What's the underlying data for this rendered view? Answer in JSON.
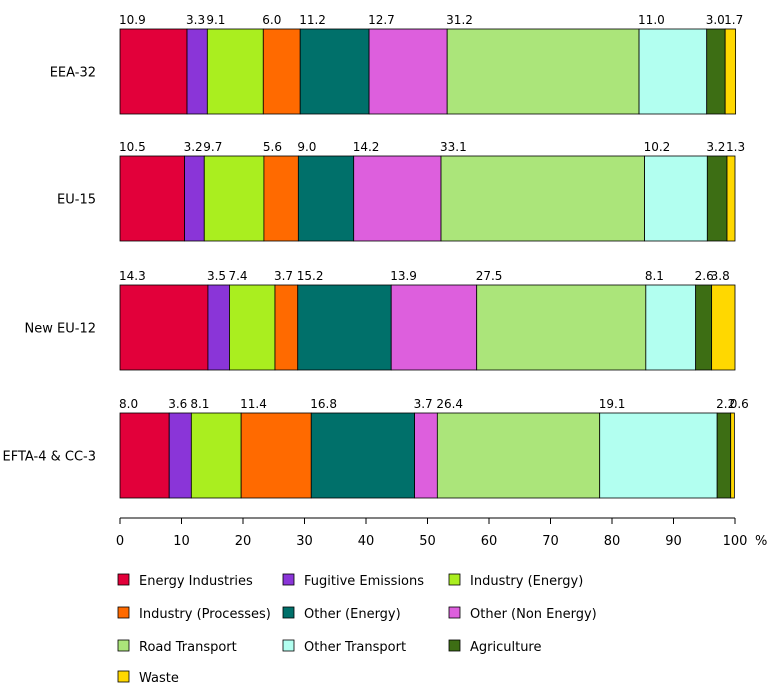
{
  "chart_data": {
    "type": "bar",
    "orientation": "horizontal",
    "stacked": true,
    "title": "",
    "xlabel": "",
    "ylabel": "",
    "x_unit": "%",
    "xlim": [
      0,
      100
    ],
    "x_ticks": [
      0,
      10,
      20,
      30,
      40,
      50,
      60,
      70,
      80,
      90,
      100
    ],
    "grid": false,
    "legend_position": "bottom",
    "categories": [
      "EEA-32",
      "EU-15",
      "New EU-12",
      "EFTA-4 & CC-3"
    ],
    "series": [
      {
        "name": "Energy Industries",
        "color": "#e2003a",
        "values": [
          10.9,
          10.5,
          14.3,
          8.0
        ]
      },
      {
        "name": "Fugitive Emissions",
        "color": "#8a35d8",
        "values": [
          3.3,
          3.2,
          3.5,
          3.6
        ]
      },
      {
        "name": "Industry (Energy)",
        "color": "#aaee1f",
        "values": [
          9.1,
          9.7,
          7.4,
          8.1
        ]
      },
      {
        "name": "Industry (Processes)",
        "color": "#ff6a00",
        "values": [
          6.0,
          5.6,
          3.7,
          11.4
        ]
      },
      {
        "name": "Other (Energy)",
        "color": "#00706a",
        "values": [
          11.2,
          9.0,
          15.2,
          16.8
        ]
      },
      {
        "name": "Other (Non Energy)",
        "color": "#dd5fdd",
        "values": [
          12.7,
          14.2,
          13.9,
          3.7
        ]
      },
      {
        "name": "Road Transport",
        "color": "#abe57a",
        "values": [
          31.2,
          33.1,
          27.5,
          26.4
        ]
      },
      {
        "name": "Other Transport",
        "color": "#b2fff0",
        "values": [
          11.0,
          10.2,
          8.1,
          19.1
        ]
      },
      {
        "name": "Agriculture",
        "color": "#3d6e14",
        "values": [
          3.0,
          3.2,
          2.6,
          2.2
        ]
      },
      {
        "name": "Waste",
        "color": "#ffd800",
        "values": [
          1.7,
          1.3,
          3.8,
          0.6
        ]
      }
    ]
  }
}
